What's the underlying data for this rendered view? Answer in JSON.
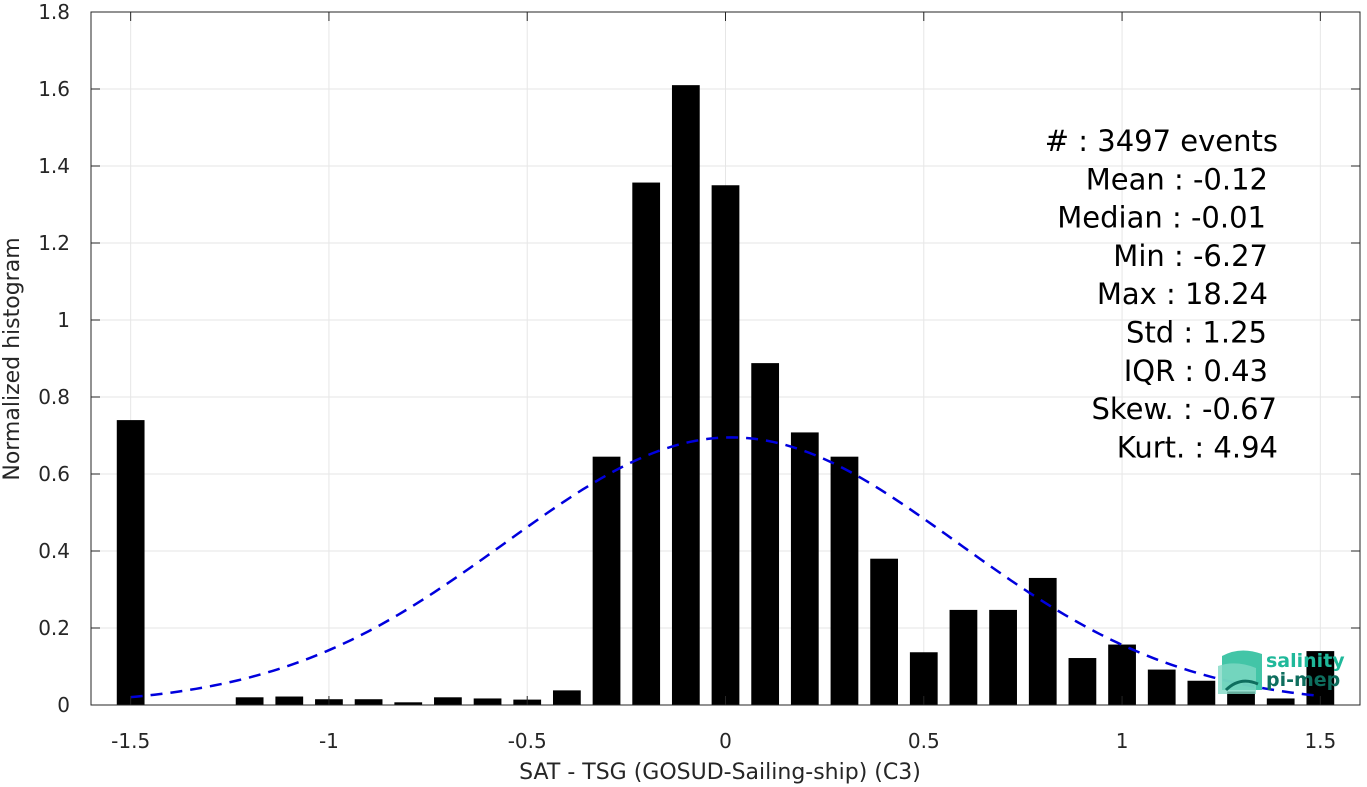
{
  "chart_data": {
    "type": "bar",
    "xlabel": "SAT - TSG (GOSUD-Sailing-ship) (C3)",
    "ylabel": "Normalized histogram",
    "xlim": [
      -1.6,
      1.6
    ],
    "ylim": [
      0,
      1.8
    ],
    "grid": true,
    "x_ticks": [
      -1.5,
      -1,
      -0.5,
      0,
      0.5,
      1,
      1.5
    ],
    "x_tick_labels": [
      "-1.5",
      "-1",
      "-0.5",
      "0",
      "0.5",
      "1",
      "1.5"
    ],
    "y_ticks": [
      0,
      0.2,
      0.4,
      0.6,
      0.8,
      1,
      1.2,
      1.4,
      1.6,
      1.8
    ],
    "y_tick_labels": [
      "0",
      "0.2",
      "0.4",
      "0.6",
      "0.8",
      "1",
      "1.2",
      "1.4",
      "1.6",
      "1.8"
    ],
    "bar_color": "#000000",
    "bar_width": 0.07,
    "series": [
      {
        "x": [
          -1.5,
          -1.2,
          -1.1,
          -1.0,
          -0.9,
          -0.8,
          -0.7,
          -0.6,
          -0.5,
          -0.4,
          -0.3,
          -0.2,
          -0.1,
          0.0,
          0.1,
          0.2,
          0.3,
          0.4,
          0.5,
          0.6,
          0.7,
          0.8,
          0.9,
          1.0,
          1.1,
          1.2,
          1.3,
          1.4,
          1.5
        ],
        "values": [
          0.74,
          0.02,
          0.022,
          0.015,
          0.015,
          0.007,
          0.02,
          0.017,
          0.014,
          0.038,
          0.645,
          1.357,
          1.61,
          1.35,
          0.888,
          0.708,
          0.645,
          0.38,
          0.137,
          0.247,
          0.247,
          0.33,
          0.122,
          0.157,
          0.092,
          0.063,
          0.035,
          0.017,
          0.14
        ]
      }
    ],
    "fit_curve": {
      "style": "dashed",
      "color": "#0000dd",
      "mean": 0.015,
      "std": 0.57,
      "peak": 0.695,
      "x_range": [
        -1.5,
        1.5
      ]
    },
    "stats_lines": [
      "#  : 3497 events",
      "Mean : -0.12",
      "Median : -0.01",
      "Min : -6.27",
      "Max : 18.24",
      "Std : 1.25",
      "IQR : 0.43",
      "Skew. : -0.67",
      "Kurt. : 4.94"
    ]
  },
  "logo": {
    "line1": "salinity",
    "line2": "pi-mep",
    "color1": "#1fb89a",
    "color2": "#0e6e5e"
  }
}
